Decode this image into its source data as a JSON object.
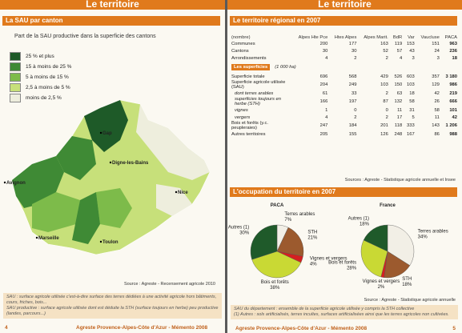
{
  "left_page": {
    "header": "Le territoire",
    "section_title": "La SAU par canton",
    "map": {
      "subtitle": "Part de la SAU productive dans la superficie des cantons",
      "legend": [
        {
          "label": "25 % et plus",
          "color": "#1e5a28"
        },
        {
          "label": "15 à moins de 25 %",
          "color": "#3f8a35"
        },
        {
          "label": "5 à moins de 15 %",
          "color": "#7dbb4a"
        },
        {
          "label": "2,5 à moins de 5 %",
          "color": "#c7e07a"
        },
        {
          "label": "moins de 2,5 %",
          "color": "#eeeedd"
        }
      ],
      "places": [
        "Gap",
        "Digne-les-Bains",
        "Avignon",
        "Nice",
        "Marseille",
        "Toulon"
      ],
      "source": "Source : Agreste - Recensement agricole 2010"
    },
    "notes": [
      "SAU : surface agricole utilisée c'est-à-dire surface des terres dédiées à une activité agricole hors bâtiments, cours, friches, bois...",
      "SAU productive : surface agricole utilisée dont est déduite la STH (surface toujours en herbe) peu productive (landes, parcours...)"
    ],
    "footer": "Agreste Provence-Alpes-Côte d'Azur - Mémento 2008",
    "page_number": "4"
  },
  "right_page": {
    "header": "Le territoire",
    "table": {
      "title": "Le territoire régional en 2007",
      "columns": [
        "(nombre)",
        "Alpes Hte Pce",
        "Htes Alpes",
        "Alpes Marit.",
        "BdR",
        "Var",
        "Vaucluse",
        "PACA"
      ],
      "rows": [
        [
          "Communes",
          "200",
          "177",
          "163",
          "119",
          "153",
          "151",
          "963"
        ],
        [
          "Cantons",
          "30",
          "30",
          "52",
          "57",
          "43",
          "24",
          "236"
        ],
        [
          "Arrondissements",
          "4",
          "2",
          "2",
          "4",
          "3",
          "3",
          "18"
        ]
      ],
      "section": "Les superficies",
      "section_unit": "(1 000 ha)",
      "area_rows": [
        [
          "Superficie totale",
          "696",
          "568",
          "429",
          "526",
          "603",
          "357",
          "3 180"
        ],
        [
          "Superficie agricole utilisée (SAU)",
          "204",
          "249",
          "103",
          "150",
          "103",
          "129",
          "986"
        ],
        [
          "dont terres arables",
          "61",
          "33",
          "2",
          "63",
          "18",
          "42",
          "219"
        ],
        [
          "superficies toujours en herbe (STH)",
          "166",
          "197",
          "87",
          "132",
          "58",
          "26",
          "666"
        ],
        [
          "vignes",
          "1",
          "0",
          "0",
          "11",
          "31",
          "58",
          "101"
        ],
        [
          "vergers",
          "4",
          "2",
          "2",
          "17",
          "5",
          "11",
          "42"
        ],
        [
          "Bois et forêts (y.c. peupleraies)",
          "247",
          "184",
          "201",
          "118",
          "333",
          "143",
          "1 206"
        ],
        [
          "Autres territoires",
          "205",
          "155",
          "126",
          "248",
          "167",
          "86",
          "988"
        ]
      ],
      "source": "Sources : Agreste - Statistique agricole annuelle et Insee"
    },
    "occupation_title": "L'occupation du territoire en 2007",
    "source": "Source : Agreste - Statistique agricole annuelle",
    "notes": [
      "SAU du département : ensemble de la superficie agricole utilisée y compris la STH collective",
      "(1) Autres : sols artificialisés, terres incultes, surfaces artificialisées ainsi que les terres agricoles non cultivées."
    ],
    "footer": "Agreste Provence-Alpes-Côte d'Azur - Mémento 2008",
    "page_number": "5"
  },
  "chart_data": [
    {
      "type": "pie",
      "title": "PACA",
      "categories": [
        "Terres arables",
        "STH",
        "Vignes et vergers",
        "Bois et forêts",
        "Autres (1)"
      ],
      "values": [
        7,
        21,
        4,
        38,
        30
      ],
      "value_labels": [
        "7%",
        "21%",
        "4%",
        "38%",
        "30%"
      ],
      "colors": [
        "#f2efe6",
        "#9c5a2e",
        "#d42020",
        "#c9d934",
        "#1f5a2a"
      ]
    },
    {
      "type": "pie",
      "title": "France",
      "categories": [
        "Terres arables",
        "STH",
        "Vignes et vergers",
        "Bois et forêts",
        "Autres (1)"
      ],
      "values": [
        34,
        18,
        2,
        28,
        18
      ],
      "value_labels": [
        "34%",
        "18%",
        "2%",
        "28%",
        "18%"
      ],
      "colors": [
        "#f2efe6",
        "#9c5a2e",
        "#d42020",
        "#c9d934",
        "#1f5a2a"
      ]
    }
  ]
}
